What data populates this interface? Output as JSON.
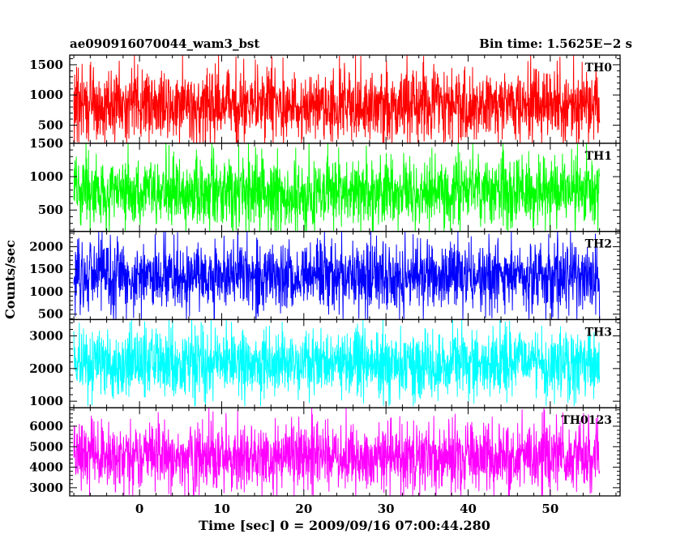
{
  "header": {
    "left_title": "ae090916070044_wam3_bst",
    "right_title": "Bin time: 1.5625E−2 s"
  },
  "chart_data": {
    "type": "line",
    "title": "ae090916070044_wam3_bst",
    "bin_time_label": "Bin time: 1.5625E−2 s",
    "xlabel": "Time [sec] 0 = 2009/09/16 07:00:44.280",
    "ylabel": "Counts/sec",
    "xlim": [
      -8.5,
      58.5
    ],
    "data_xrange": [
      -8.0,
      56.0
    ],
    "x_ticks": [
      0,
      10,
      20,
      30,
      40,
      50
    ],
    "x_tick_labels": [
      "0",
      "10",
      "20",
      "30",
      "40",
      "50"
    ],
    "grid": false,
    "panels": [
      {
        "name": "TH0",
        "color": "#ff0000",
        "ylim": [
          200,
          1660
        ],
        "y_ticks": [
          500,
          1000,
          1500
        ],
        "y_tick_labels": [
          "500",
          "1000",
          "1500"
        ],
        "approx_mean": 830,
        "approx_min": 150,
        "approx_max": 1660
      },
      {
        "name": "TH1",
        "color": "#00ff00",
        "ylim": [
          180,
          1500
        ],
        "y_ticks": [
          500,
          1000,
          1500
        ],
        "y_tick_labels": [
          "500",
          "1000",
          "1500"
        ],
        "approx_mean": 770,
        "approx_min": 130,
        "approx_max": 1500
      },
      {
        "name": "TH2",
        "color": "#0000ff",
        "ylim": [
          380,
          2340
        ],
        "y_ticks": [
          500,
          1000,
          1500,
          2000
        ],
        "y_tick_labels": [
          "500",
          "1000",
          "1500",
          "2000"
        ],
        "approx_mean": 1340,
        "approx_min": 380,
        "approx_max": 2340
      },
      {
        "name": "TH3",
        "color": "#00ffff",
        "ylim": [
          800,
          3500
        ],
        "y_ticks": [
          1000,
          2000,
          3000
        ],
        "y_tick_labels": [
          "1000",
          "2000",
          "3000"
        ],
        "approx_mean": 2120,
        "approx_min": 850,
        "approx_max": 3500
      },
      {
        "name": "TH0123",
        "color": "#ff00ff",
        "ylim": [
          2600,
          6900
        ],
        "y_ticks": [
          3000,
          4000,
          5000,
          6000
        ],
        "y_tick_labels": [
          "3000",
          "4000",
          "5000",
          "6000"
        ],
        "approx_mean": 4500,
        "approx_min": 2600,
        "approx_max": 6900
      }
    ]
  }
}
